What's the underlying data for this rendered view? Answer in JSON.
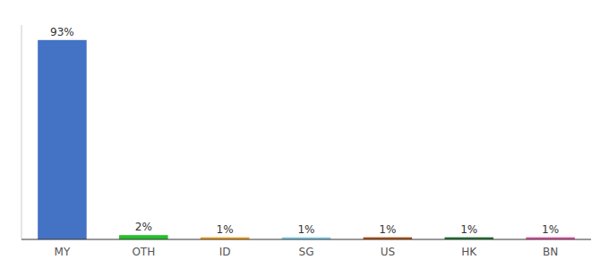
{
  "chart_data": {
    "type": "bar",
    "categories": [
      "MY",
      "OTH",
      "ID",
      "SG",
      "US",
      "HK",
      "BN"
    ],
    "values": [
      93,
      2,
      1,
      1,
      1,
      1,
      1
    ],
    "value_labels": [
      "93%",
      "2%",
      "1%",
      "1%",
      "1%",
      "1%",
      "1%"
    ],
    "data_labels": true,
    "colors": [
      "#4472C4",
      "#22C02B",
      "#F0A020",
      "#87CEEB",
      "#B05010",
      "#207030",
      "#E050A0"
    ],
    "ylim": [
      0,
      100
    ],
    "tick_labels": "x",
    "grid": false
  }
}
